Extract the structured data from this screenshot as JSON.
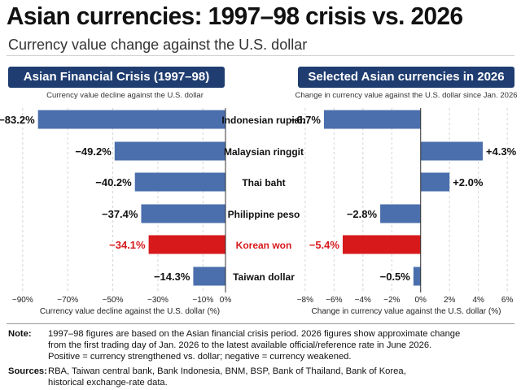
{
  "header": {
    "title": "Asian currencies: 1997–98 crisis vs. 2026",
    "subtitle": "Currency value change against the U.S. dollar"
  },
  "chart_data": [
    {
      "type": "bar",
      "orientation": "horizontal",
      "title": "Asian Financial Crisis (1997–98)",
      "subtitle": "Currency value decline against the U.S. dollar",
      "xlabel": "Currency value decline against the U.S. dollar (%)",
      "categories": [
        "Indonesian rupiah",
        "Malaysian ringgit",
        "Thai baht",
        "Philippine peso",
        "Korean won",
        "Taiwan dollar"
      ],
      "values": [
        -83.2,
        -49.2,
        -40.2,
        -37.4,
        -34.1,
        -14.3
      ],
      "value_labels": [
        "−83.2%",
        "−49.2%",
        "−40.2%",
        "−37.4%",
        "−34.1%",
        "−14.3%"
      ],
      "highlight_index": 4,
      "xlim": [
        -95,
        0
      ],
      "xticks": [
        -90,
        -70,
        -50,
        -30,
        -10
      ],
      "xtick_labels": [
        "−90%",
        "−70%",
        "−50%",
        "−30%",
        "−10%"
      ],
      "grid": true
    },
    {
      "type": "bar",
      "orientation": "horizontal",
      "title": "Selected Asian currencies in 2026",
      "subtitle": "Change in currency value against the U.S. dollar since Jan. 2026",
      "xlabel": "Change in currency value against the U.S. dollar (%)",
      "categories": [
        "Indonesian rupiah",
        "Malaysian ringgit",
        "Thai baht",
        "Philippine peso",
        "Korean won",
        "Taiwan dollar"
      ],
      "values": [
        -6.7,
        4.3,
        2.0,
        -2.8,
        -5.4,
        -0.5
      ],
      "value_labels": [
        "−6.7%",
        "+4.3%",
        "+2.0%",
        "−2.8%",
        "−5.4%",
        "−0.5%"
      ],
      "highlight_index": 4,
      "xlim": [
        -8.5,
        6.5
      ],
      "xticks": [
        -8,
        -6,
        -4,
        -2,
        0,
        2,
        4,
        6
      ],
      "xtick_labels": [
        "−8%",
        "−6%",
        "−4%",
        "−2%",
        "0%",
        "2%",
        "4%",
        "6%"
      ],
      "grid": true
    }
  ],
  "left_axis_end_label": "0%",
  "colors": {
    "bar": "#4a6fac",
    "highlight": "#d7191c",
    "panel_header": "#1f3d70",
    "grid": "#d4d4d4"
  },
  "footer": {
    "note_label": "Note:",
    "note_lines": [
      "1997–98 figures are based on the Asian financial crisis period. 2026 figures show approximate change",
      "from the first trading day of Jan. 2026 to the latest available official/reference rate in June 2026.",
      "Positive = currency strengthened vs. dollar; negative = currency weakened."
    ],
    "sources_label": "Sources:",
    "sources_lines": [
      "RBA, Taiwan central bank, Bank Indonesia, BNM, BSP, Bank of Thailand,  Bank of Korea,",
      "historical exchange-rate data."
    ]
  }
}
